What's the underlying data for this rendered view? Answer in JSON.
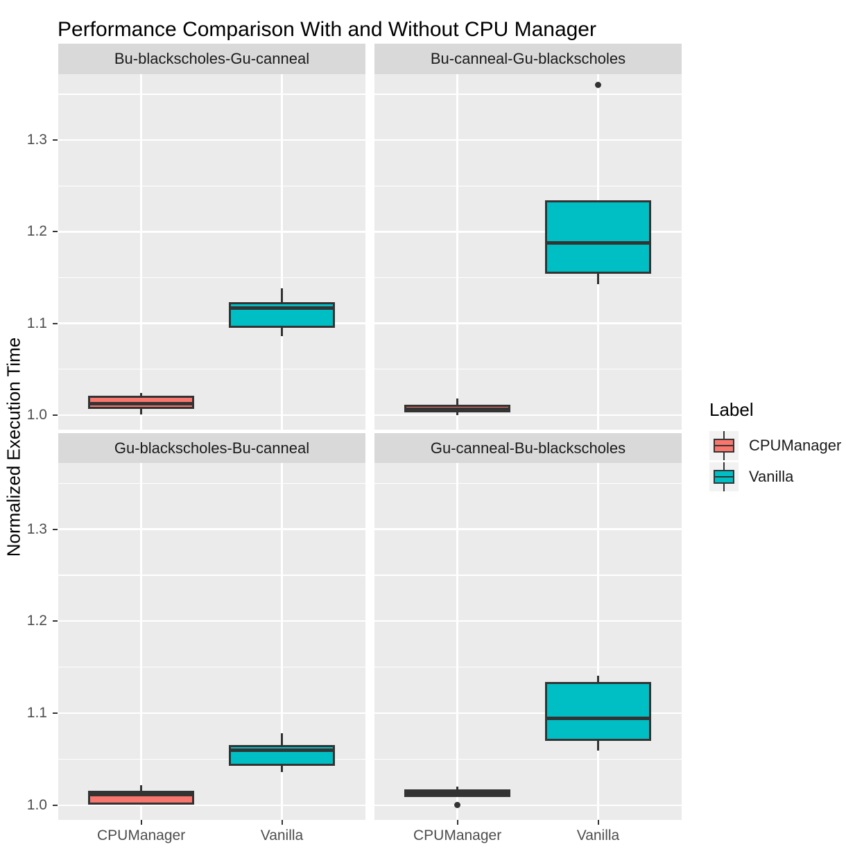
{
  "chart_data": {
    "type": "boxplot",
    "title": "Performance Comparison With and Without CPU Manager",
    "ylabel": "Normalized Execution Time",
    "xlabel": "",
    "categories": [
      "CPUManager",
      "Vanilla"
    ],
    "y_ticks": [
      1.0,
      1.1,
      1.2,
      1.3
    ],
    "y_tick_labels": [
      "1.0",
      "1.1",
      "1.2",
      "1.3"
    ],
    "y_minor_ticks": [
      1.05,
      1.15,
      1.25,
      1.35
    ],
    "ylim": [
      0.984,
      1.372
    ],
    "grid": true,
    "legend": {
      "title": "Label",
      "position": "right",
      "entries": [
        {
          "label": "CPUManager",
          "color": "#F8766D"
        },
        {
          "label": "Vanilla",
          "color": "#00BFC4"
        }
      ]
    },
    "facets": [
      {
        "label": "Bu-blackscholes-Gu-canneal",
        "boxes": [
          {
            "group": "CPUManager",
            "color": "#F8766D",
            "whisker_low": 1.001,
            "q1": 1.007,
            "median": 1.012,
            "q3": 1.021,
            "whisker_high": 1.024,
            "outliers": []
          },
          {
            "group": "Vanilla",
            "color": "#00BFC4",
            "whisker_low": 1.086,
            "q1": 1.095,
            "median": 1.117,
            "q3": 1.123,
            "whisker_high": 1.138,
            "outliers": []
          }
        ]
      },
      {
        "label": "Bu-canneal-Gu-blackscholes",
        "boxes": [
          {
            "group": "CPUManager",
            "color": "#F8766D",
            "whisker_low": 1.0,
            "q1": 1.003,
            "median": 1.006,
            "q3": 1.011,
            "whisker_high": 1.018,
            "outliers": []
          },
          {
            "group": "Vanilla",
            "color": "#00BFC4",
            "whisker_low": 1.143,
            "q1": 1.154,
            "median": 1.188,
            "q3": 1.234,
            "whisker_high": 1.234,
            "outliers": [
              1.36
            ]
          }
        ]
      },
      {
        "label": "Gu-blackscholes-Bu-canneal",
        "boxes": [
          {
            "group": "CPUManager",
            "color": "#F8766D",
            "whisker_low": 1.0005,
            "q1": 1.0005,
            "median": 1.0115,
            "q3": 1.016,
            "whisker_high": 1.022,
            "outliers": []
          },
          {
            "group": "Vanilla",
            "color": "#00BFC4",
            "whisker_low": 1.036,
            "q1": 1.043,
            "median": 1.06,
            "q3": 1.065,
            "whisker_high": 1.078,
            "outliers": []
          }
        ]
      },
      {
        "label": "Gu-canneal-Bu-blackscholes",
        "boxes": [
          {
            "group": "CPUManager",
            "color": "#F8766D",
            "whisker_low": 1.009,
            "q1": 1.009,
            "median": 1.013,
            "q3": 1.017,
            "whisker_high": 1.02,
            "outliers": [
              1.0
            ]
          },
          {
            "group": "Vanilla",
            "color": "#00BFC4",
            "whisker_low": 1.059,
            "q1": 1.07,
            "median": 1.094,
            "q3": 1.134,
            "whisker_high": 1.141,
            "outliers": []
          }
        ]
      }
    ],
    "colors": {
      "box_outline": "#333333",
      "panel_bg": "#EBEBEB",
      "strip_bg": "#D9D9D9",
      "gridline": "#FFFFFF",
      "legend_key_bg": "#F2F2F2",
      "axis_text": "#4D4D4D",
      "tick_mark": "#333333"
    }
  }
}
